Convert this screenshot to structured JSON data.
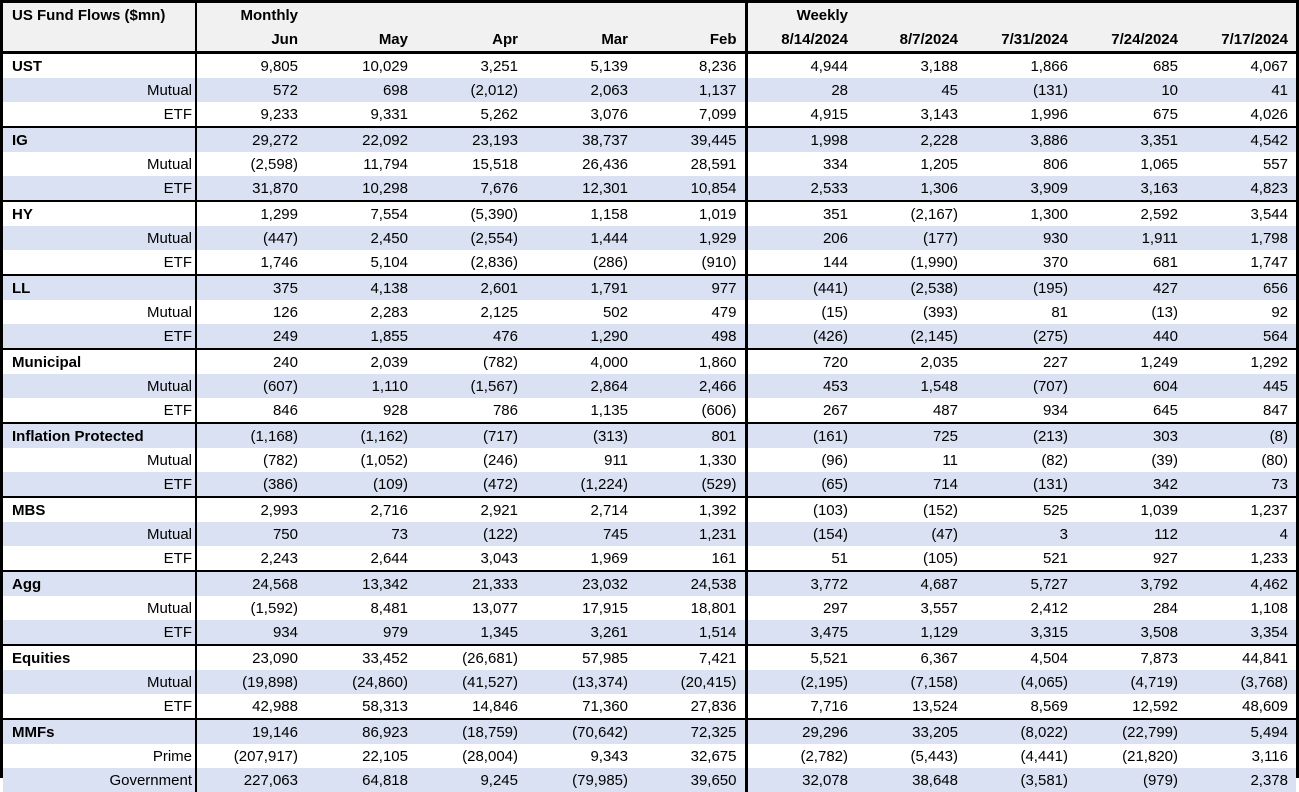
{
  "colors": {
    "band": "#D9E1F2",
    "header_bg": "#F1F1F1",
    "border": "#000000",
    "text": "#000000"
  },
  "chart_data": {
    "type": "table",
    "title": "US Fund Flows ($mn)",
    "section_headers": [
      {
        "label": "Monthly",
        "span": 5
      },
      {
        "label": "Weekly",
        "span": 5
      }
    ],
    "columns": [
      "Jun",
      "May",
      "Apr",
      "Mar",
      "Feb",
      "8/14/2024",
      "8/7/2024",
      "7/31/2024",
      "7/24/2024",
      "7/17/2024"
    ],
    "groups": [
      {
        "name": "UST",
        "rows": [
          {
            "label": "UST",
            "values": [
              "9,805",
              "10,029",
              "3,251",
              "5,139",
              "8,236",
              "4,944",
              "3,188",
              "1,866",
              "685",
              "4,067"
            ]
          },
          {
            "label": "Mutual",
            "values": [
              "572",
              "698",
              "(2,012)",
              "2,063",
              "1,137",
              "28",
              "45",
              "(131)",
              "10",
              "41"
            ]
          },
          {
            "label": "ETF",
            "values": [
              "9,233",
              "9,331",
              "5,262",
              "3,076",
              "7,099",
              "4,915",
              "3,143",
              "1,996",
              "675",
              "4,026"
            ]
          }
        ]
      },
      {
        "name": "IG",
        "rows": [
          {
            "label": "IG",
            "values": [
              "29,272",
              "22,092",
              "23,193",
              "38,737",
              "39,445",
              "1,998",
              "2,228",
              "3,886",
              "3,351",
              "4,542"
            ]
          },
          {
            "label": "Mutual",
            "values": [
              "(2,598)",
              "11,794",
              "15,518",
              "26,436",
              "28,591",
              "334",
              "1,205",
              "806",
              "1,065",
              "557"
            ]
          },
          {
            "label": "ETF",
            "values": [
              "31,870",
              "10,298",
              "7,676",
              "12,301",
              "10,854",
              "2,533",
              "1,306",
              "3,909",
              "3,163",
              "4,823"
            ]
          }
        ]
      },
      {
        "name": "HY",
        "rows": [
          {
            "label": "HY",
            "values": [
              "1,299",
              "7,554",
              "(5,390)",
              "1,158",
              "1,019",
              "351",
              "(2,167)",
              "1,300",
              "2,592",
              "3,544"
            ]
          },
          {
            "label": "Mutual",
            "values": [
              "(447)",
              "2,450",
              "(2,554)",
              "1,444",
              "1,929",
              "206",
              "(177)",
              "930",
              "1,911",
              "1,798"
            ]
          },
          {
            "label": "ETF",
            "values": [
              "1,746",
              "5,104",
              "(2,836)",
              "(286)",
              "(910)",
              "144",
              "(1,990)",
              "370",
              "681",
              "1,747"
            ]
          }
        ]
      },
      {
        "name": "LL",
        "rows": [
          {
            "label": "LL",
            "values": [
              "375",
              "4,138",
              "2,601",
              "1,791",
              "977",
              "(441)",
              "(2,538)",
              "(195)",
              "427",
              "656"
            ]
          },
          {
            "label": "Mutual",
            "values": [
              "126",
              "2,283",
              "2,125",
              "502",
              "479",
              "(15)",
              "(393)",
              "81",
              "(13)",
              "92"
            ]
          },
          {
            "label": "ETF",
            "values": [
              "249",
              "1,855",
              "476",
              "1,290",
              "498",
              "(426)",
              "(2,145)",
              "(275)",
              "440",
              "564"
            ]
          }
        ]
      },
      {
        "name": "Municipal",
        "rows": [
          {
            "label": "Municipal",
            "values": [
              "240",
              "2,039",
              "(782)",
              "4,000",
              "1,860",
              "720",
              "2,035",
              "227",
              "1,249",
              "1,292"
            ]
          },
          {
            "label": "Mutual",
            "values": [
              "(607)",
              "1,110",
              "(1,567)",
              "2,864",
              "2,466",
              "453",
              "1,548",
              "(707)",
              "604",
              "445"
            ]
          },
          {
            "label": "ETF",
            "values": [
              "846",
              "928",
              "786",
              "1,135",
              "(606)",
              "267",
              "487",
              "934",
              "645",
              "847"
            ]
          }
        ]
      },
      {
        "name": "Inflation Protected",
        "rows": [
          {
            "label": "Inflation Protected",
            "values": [
              "(1,168)",
              "(1,162)",
              "(717)",
              "(313)",
              "801",
              "(161)",
              "725",
              "(213)",
              "303",
              "(8)"
            ]
          },
          {
            "label": "Mutual",
            "values": [
              "(782)",
              "(1,052)",
              "(246)",
              "911",
              "1,330",
              "(96)",
              "11",
              "(82)",
              "(39)",
              "(80)"
            ]
          },
          {
            "label": "ETF",
            "values": [
              "(386)",
              "(109)",
              "(472)",
              "(1,224)",
              "(529)",
              "(65)",
              "714",
              "(131)",
              "342",
              "73"
            ]
          }
        ]
      },
      {
        "name": "MBS",
        "rows": [
          {
            "label": "MBS",
            "values": [
              "2,993",
              "2,716",
              "2,921",
              "2,714",
              "1,392",
              "(103)",
              "(152)",
              "525",
              "1,039",
              "1,237"
            ]
          },
          {
            "label": "Mutual",
            "values": [
              "750",
              "73",
              "(122)",
              "745",
              "1,231",
              "(154)",
              "(47)",
              "3",
              "112",
              "4"
            ]
          },
          {
            "label": "ETF",
            "values": [
              "2,243",
              "2,644",
              "3,043",
              "1,969",
              "161",
              "51",
              "(105)",
              "521",
              "927",
              "1,233"
            ]
          }
        ]
      },
      {
        "name": "Agg",
        "rows": [
          {
            "label": "Agg",
            "values": [
              "24,568",
              "13,342",
              "21,333",
              "23,032",
              "24,538",
              "3,772",
              "4,687",
              "5,727",
              "3,792",
              "4,462"
            ]
          },
          {
            "label": "Mutual",
            "values": [
              "(1,592)",
              "8,481",
              "13,077",
              "17,915",
              "18,801",
              "297",
              "3,557",
              "2,412",
              "284",
              "1,108"
            ]
          },
          {
            "label": "ETF",
            "values": [
              "934",
              "979",
              "1,345",
              "3,261",
              "1,514",
              "3,475",
              "1,129",
              "3,315",
              "3,508",
              "3,354"
            ]
          }
        ]
      },
      {
        "name": "Equities",
        "rows": [
          {
            "label": "Equities",
            "values": [
              "23,090",
              "33,452",
              "(26,681)",
              "57,985",
              "7,421",
              "5,521",
              "6,367",
              "4,504",
              "7,873",
              "44,841"
            ]
          },
          {
            "label": "Mutual",
            "values": [
              "(19,898)",
              "(24,860)",
              "(41,527)",
              "(13,374)",
              "(20,415)",
              "(2,195)",
              "(7,158)",
              "(4,065)",
              "(4,719)",
              "(3,768)"
            ]
          },
          {
            "label": "ETF",
            "values": [
              "42,988",
              "58,313",
              "14,846",
              "71,360",
              "27,836",
              "7,716",
              "13,524",
              "8,569",
              "12,592",
              "48,609"
            ]
          }
        ]
      },
      {
        "name": "MMFs",
        "rows": [
          {
            "label": "MMFs",
            "values": [
              "19,146",
              "86,923",
              "(18,759)",
              "(70,642)",
              "72,325",
              "29,296",
              "33,205",
              "(8,022)",
              "(22,799)",
              "5,494"
            ]
          },
          {
            "label": "Prime",
            "values": [
              "(207,917)",
              "22,105",
              "(28,004)",
              "9,343",
              "32,675",
              "(2,782)",
              "(5,443)",
              "(4,441)",
              "(21,820)",
              "3,116"
            ]
          },
          {
            "label": "Government",
            "values": [
              "227,063",
              "64,818",
              "9,245",
              "(79,985)",
              "39,650",
              "32,078",
              "38,648",
              "(3,581)",
              "(979)",
              "2,378"
            ]
          }
        ]
      }
    ]
  }
}
